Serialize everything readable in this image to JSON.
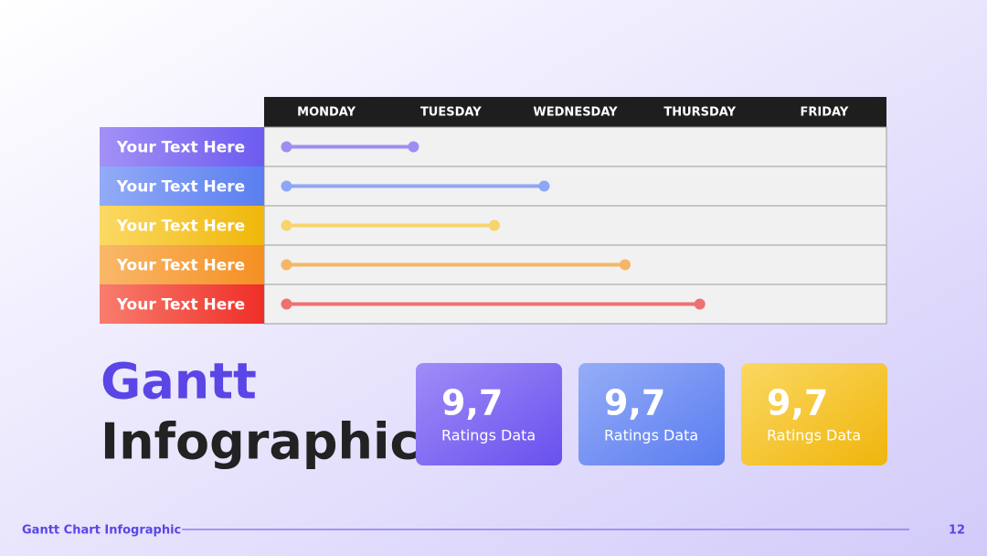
{
  "chart_data": {
    "type": "gantt",
    "columns": [
      "MONDAY",
      "TUESDAY",
      "WEDNESDAY",
      "THURSDAY",
      "FRIDAY"
    ],
    "xlim": [
      0,
      5
    ],
    "categories": [
      "Your Text Here",
      "Your Text Here",
      "Your Text Here",
      "Your Text Here",
      "Your Text Here"
    ],
    "starts": [
      0.18,
      0.18,
      0.18,
      0.18,
      0.18
    ],
    "ends": [
      1.2,
      2.25,
      1.85,
      2.9,
      3.5
    ],
    "colors": [
      "#9d8ef2",
      "#8ea6f5",
      "#f7d56c",
      "#f5b666",
      "#ee7272"
    ]
  },
  "title": [
    "Gantt",
    "Infographic"
  ],
  "cards": [
    {
      "value": "9,7",
      "label": "Ratings Data"
    },
    {
      "value": "9,7",
      "label": "Ratings Data"
    },
    {
      "value": "9,7",
      "label": "Ratings Data"
    }
  ],
  "footer": {
    "text": "Gantt Chart Infographic",
    "page": "12"
  }
}
